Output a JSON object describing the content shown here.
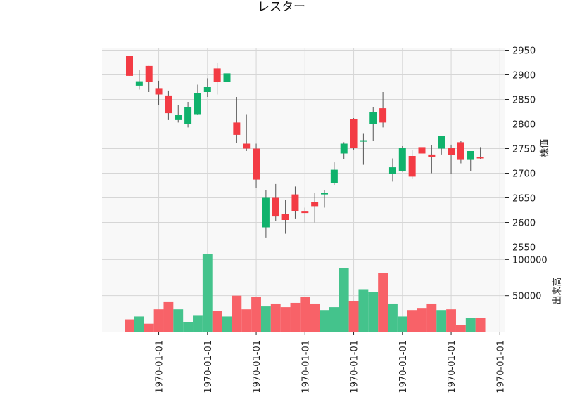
{
  "chart_data": {
    "type": "candlestick",
    "title": "レスター",
    "price_panel": {
      "ylabel": "株価",
      "ylim": [
        2545,
        2955
      ],
      "yticks": [
        2550,
        2600,
        2650,
        2700,
        2750,
        2800,
        2850,
        2900,
        2950
      ],
      "grid": true
    },
    "volume_panel": {
      "ylabel": "出来高",
      "ylim": [
        0,
        114000
      ],
      "yticks": [
        50000,
        100000
      ],
      "grid": true
    },
    "x_tick_labels": [
      "1970-01-01",
      "1970-01-01",
      "1970-01-01",
      "1970-01-01",
      "1970-01-01",
      "1970-01-01",
      "1970-01-01",
      "1970-01-01"
    ],
    "x_tick_positions": [
      3,
      8,
      13,
      18,
      23,
      28,
      33,
      38
    ],
    "colors": {
      "up": "#10b26c",
      "down": "#f33b44",
      "volume_up": "#44c38c",
      "volume_down": "#f86268",
      "wick": "#555555",
      "grid": "#d6d6d6",
      "panel_bg": "#f8f8f8"
    },
    "candles": [
      {
        "open": 2938,
        "high": 2938,
        "low": 2898,
        "close": 2898,
        "volume": 17000
      },
      {
        "open": 2878,
        "high": 2910,
        "low": 2870,
        "close": 2887,
        "volume": 21000
      },
      {
        "open": 2918,
        "high": 2918,
        "low": 2865,
        "close": 2885,
        "volume": 11000
      },
      {
        "open": 2873,
        "high": 2888,
        "low": 2838,
        "close": 2860,
        "volume": 31000
      },
      {
        "open": 2858,
        "high": 2868,
        "low": 2808,
        "close": 2822,
        "volume": 41000
      },
      {
        "open": 2808,
        "high": 2838,
        "low": 2803,
        "close": 2818,
        "volume": 31000
      },
      {
        "open": 2800,
        "high": 2845,
        "low": 2793,
        "close": 2835,
        "volume": 13000
      },
      {
        "open": 2820,
        "high": 2880,
        "low": 2818,
        "close": 2863,
        "volume": 22000
      },
      {
        "open": 2865,
        "high": 2893,
        "low": 2855,
        "close": 2875,
        "volume": 108000
      },
      {
        "open": 2913,
        "high": 2925,
        "low": 2860,
        "close": 2885,
        "volume": 29000
      },
      {
        "open": 2885,
        "high": 2930,
        "low": 2875,
        "close": 2903,
        "volume": 21000
      },
      {
        "open": 2803,
        "high": 2855,
        "low": 2762,
        "close": 2778,
        "volume": 50000
      },
      {
        "open": 2760,
        "high": 2820,
        "low": 2745,
        "close": 2750,
        "volume": 31000
      },
      {
        "open": 2750,
        "high": 2760,
        "low": 2670,
        "close": 2687,
        "volume": 48000
      },
      {
        "open": 2590,
        "high": 2665,
        "low": 2568,
        "close": 2650,
        "volume": 35000
      },
      {
        "open": 2650,
        "high": 2678,
        "low": 2603,
        "close": 2612,
        "volume": 39000
      },
      {
        "open": 2617,
        "high": 2645,
        "low": 2577,
        "close": 2605,
        "volume": 34000
      },
      {
        "open": 2657,
        "high": 2673,
        "low": 2608,
        "close": 2623,
        "volume": 40000
      },
      {
        "open": 2622,
        "high": 2630,
        "low": 2600,
        "close": 2620,
        "volume": 48000
      },
      {
        "open": 2642,
        "high": 2660,
        "low": 2600,
        "close": 2633,
        "volume": 39000
      },
      {
        "open": 2657,
        "high": 2665,
        "low": 2630,
        "close": 2660,
        "volume": 30000
      },
      {
        "open": 2680,
        "high": 2722,
        "low": 2675,
        "close": 2707,
        "volume": 34000
      },
      {
        "open": 2740,
        "high": 2763,
        "low": 2728,
        "close": 2760,
        "volume": 88000
      },
      {
        "open": 2810,
        "high": 2812,
        "low": 2748,
        "close": 2752,
        "volume": 42000
      },
      {
        "open": 2765,
        "high": 2780,
        "low": 2717,
        "close": 2767,
        "volume": 58000
      },
      {
        "open": 2800,
        "high": 2835,
        "low": 2765,
        "close": 2825,
        "volume": 55000
      },
      {
        "open": 2832,
        "high": 2865,
        "low": 2793,
        "close": 2803,
        "volume": 81000
      },
      {
        "open": 2698,
        "high": 2730,
        "low": 2683,
        "close": 2712,
        "volume": 39000
      },
      {
        "open": 2705,
        "high": 2755,
        "low": 2703,
        "close": 2752,
        "volume": 21000
      },
      {
        "open": 2735,
        "high": 2747,
        "low": 2688,
        "close": 2693,
        "volume": 30000
      },
      {
        "open": 2753,
        "high": 2760,
        "low": 2722,
        "close": 2740,
        "volume": 32000
      },
      {
        "open": 2738,
        "high": 2757,
        "low": 2700,
        "close": 2733,
        "volume": 39000
      },
      {
        "open": 2750,
        "high": 2775,
        "low": 2738,
        "close": 2775,
        "volume": 30000
      },
      {
        "open": 2752,
        "high": 2758,
        "low": 2698,
        "close": 2737,
        "volume": 31000
      },
      {
        "open": 2763,
        "high": 2765,
        "low": 2720,
        "close": 2727,
        "volume": 9000
      },
      {
        "open": 2727,
        "high": 2745,
        "low": 2705,
        "close": 2745,
        "volume": 19000
      },
      {
        "open": 2733,
        "high": 2753,
        "low": 2728,
        "close": 2730,
        "volume": 19000
      }
    ]
  }
}
